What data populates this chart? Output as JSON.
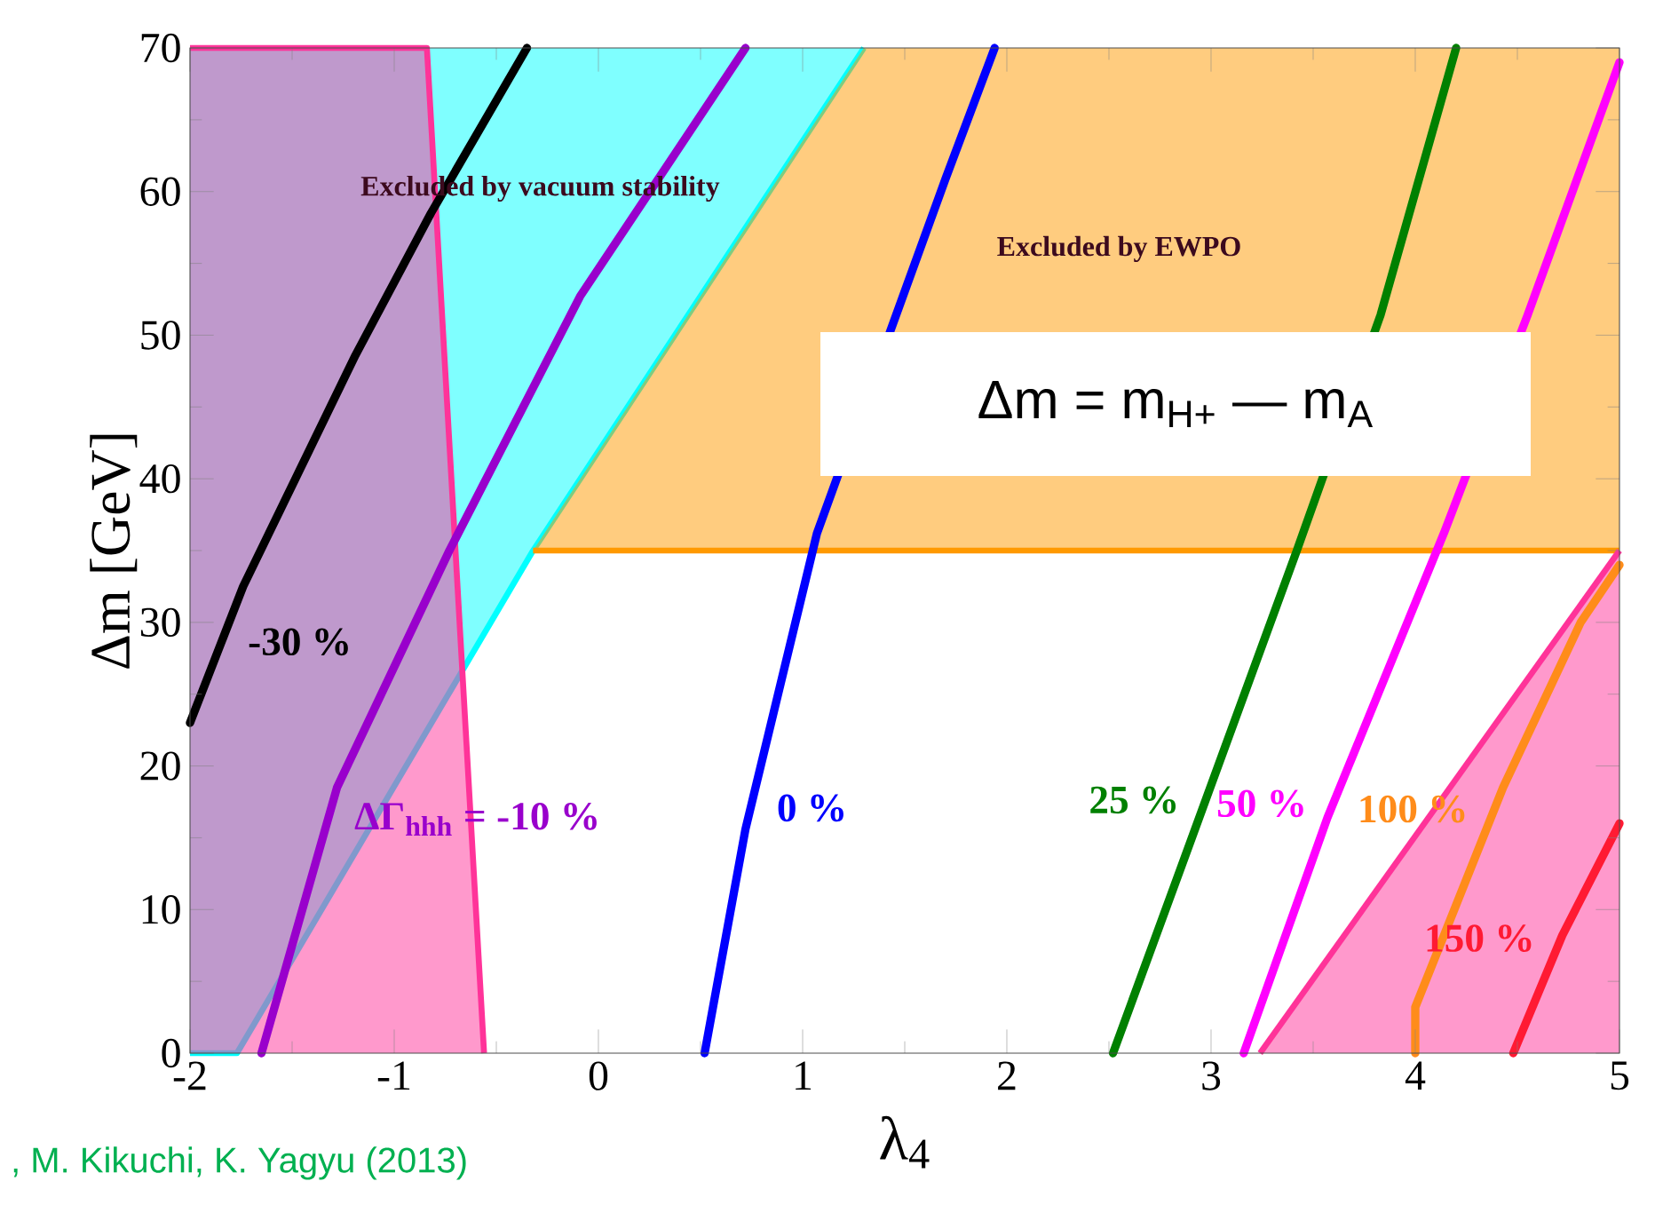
{
  "chart_data": {
    "type": "line",
    "xlabel": "λ$_{4}$",
    "ylabel": "Δm [GeV]",
    "xlim": [
      -2,
      5
    ],
    "ylim": [
      0,
      70
    ],
    "xticks": [
      -2,
      -1,
      0,
      1,
      2,
      3,
      4,
      5
    ],
    "yticks": [
      0,
      10,
      20,
      30,
      40,
      50,
      60,
      70
    ],
    "marker": "none",
    "line_style": "solid",
    "series": [
      {
        "color": "#00ffff",
        "x": [
          -2,
          -1.77,
          -0.32,
          1.3
        ],
        "values": [
          0,
          0,
          35,
          70
        ],
        "lower": [
          0,
          0,
          35,
          70
        ],
        "upper": [
          70,
          70,
          70,
          70
        ]
      },
      {
        "color": "#ff9900",
        "x": [
          -0.32,
          1.3,
          5
        ],
        "values": [
          35,
          35,
          35
        ],
        "lower": [
          35,
          35,
          35
        ],
        "upper": [
          35,
          70,
          70
        ]
      },
      {
        "color": "#ff3399",
        "x": [
          -2,
          -0.84,
          -0.56
        ],
        "values": [
          70,
          70,
          0
        ],
        "lower": [
          0,
          0,
          0
        ],
        "upper": [
          70,
          70,
          0
        ]
      },
      {
        "color": "#ff3399",
        "x": [
          3.24,
          5
        ],
        "values": [
          0,
          35
        ],
        "lower": [
          0,
          0
        ],
        "upper": [
          0,
          35
        ]
      },
      {
        "name": "-30 %",
        "color": "#000000",
        "x": [
          -2,
          -1.74,
          -1.19,
          -0.82,
          -0.35
        ],
        "values": [
          23,
          32.5,
          48.6,
          58.5,
          70
        ]
      },
      {
        "name": "ΔΓ$_{hhh}$ = -10 %",
        "color": "#9900cc",
        "x": [
          -1.65,
          -1.28,
          -0.73,
          -0.09,
          0.72
        ],
        "values": [
          0,
          18.5,
          35,
          52.7,
          70
        ]
      },
      {
        "name": "0 %",
        "color": "#0000ff",
        "x": [
          0.52,
          0.72,
          1.07,
          1.7,
          1.94
        ],
        "values": [
          0,
          15.6,
          36.2,
          60.9,
          70
        ]
      },
      {
        "name": "25 %",
        "color": "#008000",
        "x": [
          2.52,
          2.87,
          3.42,
          3.83,
          4.2
        ],
        "values": [
          0,
          13.6,
          35,
          51.4,
          70
        ]
      },
      {
        "name": "50 %",
        "color": "#ff00ff",
        "x": [
          3.16,
          3.57,
          4.14,
          4.55,
          5
        ],
        "values": [
          0,
          16.4,
          36.2,
          51.4,
          69
        ]
      },
      {
        "name": "100 %",
        "color": "#ff8c1a",
        "x": [
          4,
          4,
          4.43,
          4.81,
          5
        ],
        "values": [
          0,
          3.2,
          18.5,
          30,
          34
        ]
      },
      {
        "name": "150 %",
        "color": "#ff1a33",
        "x": [
          4.48,
          4.72,
          5
        ],
        "values": [
          0,
          8.2,
          16
        ]
      }
    ],
    "annotations": [
      "Excluded by vacuum stability",
      "Excluded by EWPO",
      "Δm = m$_{H+}$ — m$_{A}$",
      ", M. Kikuchi, K. Yagyu (2013)"
    ]
  }
}
